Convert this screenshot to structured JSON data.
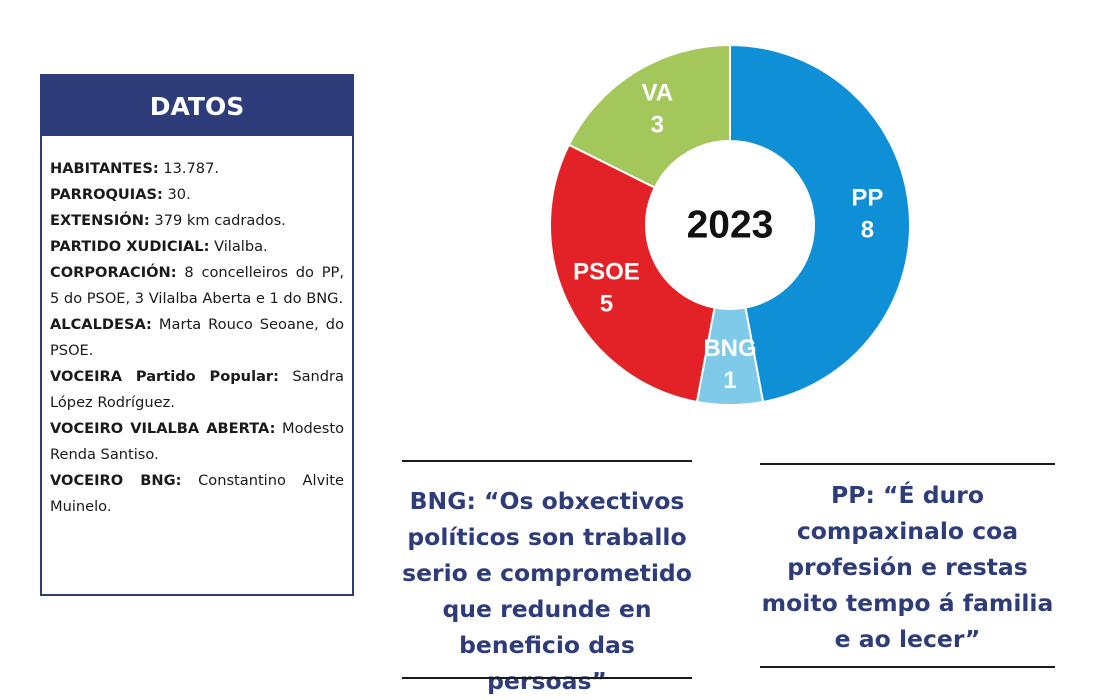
{
  "datos": {
    "title": "DATOS",
    "rows": [
      {
        "key": "HABITANTES:",
        "value": " 13.787."
      },
      {
        "key": "PARROQUIAS:",
        "value": " 30."
      },
      {
        "key": "EXTENSIÓN:",
        "value": " 379 km cadrados."
      },
      {
        "key": "PARTIDO XUDICIAL:",
        "value": " Vilalba."
      },
      {
        "key": "CORPORACIÓN:",
        "value": " 8 concelleiros do PP, 5 do PSOE, 3 Vilalba Aberta e 1 do BNG."
      },
      {
        "key": "ALCALDESA:",
        "value": " Marta Rouco Seoane, do PSOE."
      },
      {
        "key": "VOCEIRA Partido Popular:",
        "value": " Sandra López Rodríguez."
      },
      {
        "key": "VOCEIRO VILALBA ABERTA:",
        "value": " Modesto Renda Santiso."
      },
      {
        "key": "VOCEIRO BNG:",
        "value": " Constantino Alvite Muinelo."
      }
    ]
  },
  "chart_data": {
    "type": "pie",
    "title": "2023",
    "slices": [
      {
        "label": "PP",
        "value": 8,
        "color": "#0e8fd6"
      },
      {
        "label": "BNG",
        "value": 1,
        "color": "#7ecae8"
      },
      {
        "label": "PSOE",
        "value": 5,
        "color": "#e32227"
      },
      {
        "label": "VA",
        "value": 3,
        "color": "#a3c75a"
      }
    ]
  },
  "quotes": {
    "bng": "BNG: “Os obxectivos políticos son traballo serio e comprometido que redunde en beneficio das persoas”",
    "pp": "PP: “É duro compaxinalo coa profesión e restas moito tempo á familia e ao lecer”"
  }
}
